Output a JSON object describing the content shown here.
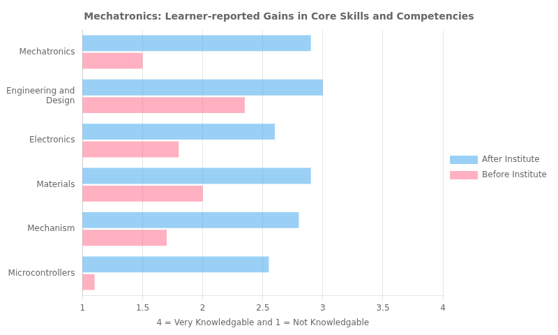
{
  "chart_data": {
    "type": "bar",
    "orientation": "horizontal",
    "title": "Mechatronics: Learner-reported Gains in Core Skills and Competencies",
    "xlabel": "4 = Very Knowledgable and 1 = Not Knowledgable",
    "categories": [
      "Mechatronics",
      "Engineering and\nDesign",
      "Electronics",
      "Materials",
      "Mechanism",
      "Microcontrollers"
    ],
    "series": [
      {
        "name": "After Institute",
        "values": [
          2.9,
          3.0,
          2.6,
          2.9,
          2.8,
          2.55
        ]
      },
      {
        "name": "Before Institute",
        "values": [
          1.5,
          2.35,
          1.8,
          2.0,
          1.7,
          1.1
        ]
      }
    ],
    "xlim": [
      1.0,
      4.0
    ],
    "xticks": [
      1.0,
      1.5,
      2.0,
      2.5,
      3.0,
      3.5,
      4.0
    ],
    "grid": true,
    "legend": "right"
  }
}
